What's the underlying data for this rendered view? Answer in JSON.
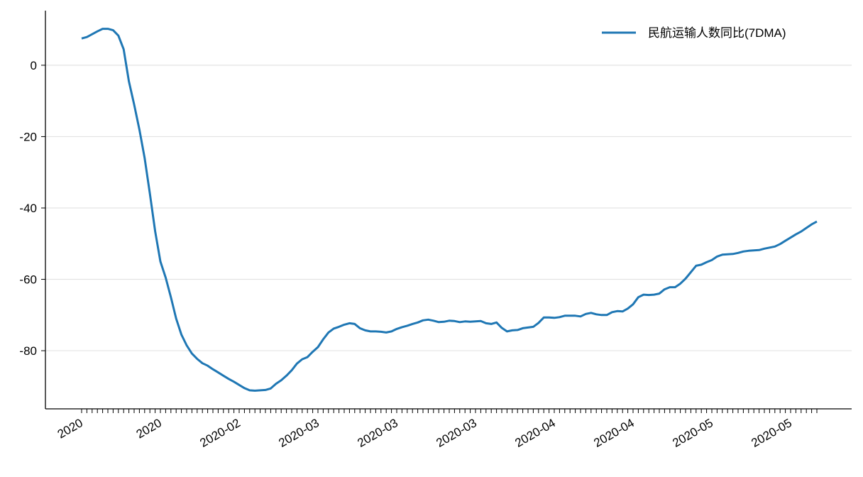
{
  "chart_data": {
    "type": "line",
    "categories": [
      "2020",
      null,
      null,
      null,
      null,
      null,
      null,
      null,
      null,
      null,
      null,
      null,
      null,
      null,
      null,
      "2020",
      null,
      null,
      null,
      null,
      null,
      null,
      null,
      null,
      null,
      null,
      null,
      null,
      null,
      null,
      "2020-02",
      null,
      null,
      null,
      null,
      null,
      null,
      null,
      null,
      null,
      null,
      null,
      null,
      null,
      null,
      "2020-03",
      null,
      null,
      null,
      null,
      null,
      null,
      null,
      null,
      null,
      null,
      null,
      null,
      null,
      null,
      "2020-03",
      null,
      null,
      null,
      null,
      null,
      null,
      null,
      null,
      null,
      null,
      null,
      null,
      null,
      null,
      "2020-03",
      null,
      null,
      null,
      null,
      null,
      null,
      null,
      null,
      null,
      null,
      null,
      null,
      null,
      null,
      "2020-04",
      null,
      null,
      null,
      null,
      null,
      null,
      null,
      null,
      null,
      null,
      null,
      null,
      null,
      null,
      "2020-04",
      null,
      null,
      null,
      null,
      null,
      null,
      null,
      null,
      null,
      null,
      null,
      null,
      null,
      null,
      "2020-05",
      null,
      null,
      null,
      null,
      null,
      null,
      null,
      null,
      null,
      null,
      null,
      null,
      null,
      null,
      "2020-05",
      null,
      null,
      null,
      null,
      null
    ],
    "series": [
      {
        "name": "民航运输人数同比(7DMA)",
        "color": "#1f77b4",
        "values": [
          7.5,
          7.9,
          8.7,
          9.5,
          10.2,
          10.2,
          9.8,
          8.3,
          4.5,
          -4.5,
          -11,
          -18,
          -26,
          -36,
          -46.5,
          -55,
          -59.5,
          -65,
          -71,
          -75.5,
          -78.5,
          -80.8,
          -82.3,
          -83.5,
          -84.2,
          -85.2,
          -86.1,
          -87,
          -87.9,
          -88.7,
          -89.6,
          -90.5,
          -91.1,
          -91.2,
          -91.1,
          -91.0,
          -90.6,
          -89.3,
          -88.3,
          -87.0,
          -85.5,
          -83.6,
          -82.4,
          -81.8,
          -80.3,
          -79.0,
          -76.8,
          -74.9,
          -73.8,
          -73.3,
          -72.7,
          -72.3,
          -72.5,
          -73.7,
          -74.3,
          -74.6,
          -74.6,
          -74.7,
          -74.9,
          -74.6,
          -73.9,
          -73.4,
          -73.0,
          -72.5,
          -72.1,
          -71.5,
          -71.3,
          -71.6,
          -72.0,
          -71.9,
          -71.6,
          -71.7,
          -72.0,
          -71.8,
          -71.9,
          -71.8,
          -71.7,
          -72.3,
          -72.5,
          -72.1,
          -73.6,
          -74.6,
          -74.3,
          -74.2,
          -73.7,
          -73.5,
          -73.3,
          -72.2,
          -70.7,
          -70.7,
          -70.8,
          -70.6,
          -70.2,
          -70.2,
          -70.2,
          -70.4,
          -69.7,
          -69.4,
          -69.8,
          -70.0,
          -70.0,
          -69.2,
          -68.9,
          -69.0,
          -68.2,
          -67.0,
          -65.0,
          -64.3,
          -64.4,
          -64.3,
          -64.0,
          -62.8,
          -62.2,
          -62.2,
          -61.2,
          -59.8,
          -58.0,
          -56.2,
          -55.9,
          -55.2,
          -54.6,
          -53.6,
          -53.1,
          -53.0,
          -52.9,
          -52.6,
          -52.2,
          -52.0,
          -51.9,
          -51.8,
          -51.4,
          -51.1,
          -50.8,
          -50.1,
          -49.2,
          -48.3,
          -47.4,
          -46.6,
          -45.6,
          -44.6,
          -43.8
        ]
      }
    ],
    "ylim": [
      -96.3,
      15.3
    ],
    "yticks": [
      0,
      -20,
      -40,
      -60,
      -80
    ],
    "grid": true,
    "legend": "upper right"
  }
}
